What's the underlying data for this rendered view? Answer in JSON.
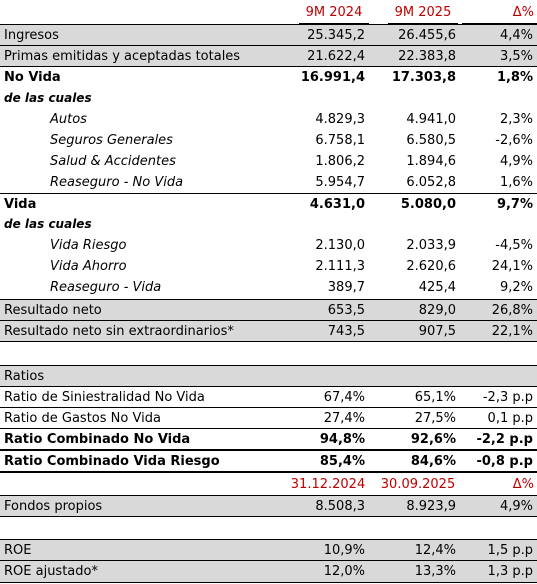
{
  "header": {
    "col1": "9M 2024",
    "col2": "9M 2025",
    "col3": "Δ%"
  },
  "rows": [
    {
      "label": "Ingresos",
      "v1": "25.345,2",
      "v2": "26.455,6",
      "d": "4,4%"
    },
    {
      "label": "Primas emitidas y aceptadas totales",
      "v1": "21.622,4",
      "v2": "22.383,8",
      "d": "3,5%"
    },
    {
      "label": "No Vida",
      "v1": "16.991,4",
      "v2": "17.303,8",
      "d": "1,8%"
    },
    {
      "label": "de las cuales"
    },
    {
      "label": "Autos",
      "v1": "4.829,3",
      "v2": "4.941,0",
      "d": "2,3%"
    },
    {
      "label": "Seguros Generales",
      "v1": "6.758,1",
      "v2": "6.580,5",
      "d": "-2,6%"
    },
    {
      "label": "Salud & Accidentes",
      "v1": "1.806,2",
      "v2": "1.894,6",
      "d": "4,9%"
    },
    {
      "label": "Reaseguro - No Vida",
      "v1": "5.954,7",
      "v2": "6.052,8",
      "d": "1,6%"
    },
    {
      "label": "Vida",
      "v1": "4.631,0",
      "v2": "5.080,0",
      "d": "9,7%"
    },
    {
      "label": "de las cuales"
    },
    {
      "label": "Vida Riesgo",
      "v1": "2.130,0",
      "v2": "2.033,9",
      "d": "-4,5%"
    },
    {
      "label": "Vida Ahorro",
      "v1": "2.111,3",
      "v2": "2.620,6",
      "d": "24,1%"
    },
    {
      "label": "Reaseguro - Vida",
      "v1": "389,7",
      "v2": "425,4",
      "d": "9,2%"
    },
    {
      "label": "Resultado neto",
      "v1": "653,5",
      "v2": "829,0",
      "d": "26,8%"
    },
    {
      "label": "Resultado neto sin extraordinarios*",
      "v1": "743,5",
      "v2": "907,5",
      "d": "22,1%"
    }
  ],
  "ratios": {
    "title": "Ratios",
    "rows": [
      {
        "label": "Ratio de Siniestralidad No Vida",
        "v1": "67,4%",
        "v2": "65,1%",
        "d": "-2,3 p.p"
      },
      {
        "label": "Ratio de Gastos No Vida",
        "v1": "27,4%",
        "v2": "27,5%",
        "d": "0,1 p.p"
      },
      {
        "label": "Ratio Combinado No Vida",
        "v1": "94,8%",
        "v2": "92,6%",
        "d": "-2,2 p.p"
      },
      {
        "label": "Ratio Combinado Vida Riesgo",
        "v1": "85,4%",
        "v2": "84,6%",
        "d": "-0,8 p.p"
      }
    ]
  },
  "header2": {
    "col1": "31.12.2024",
    "col2": "30.09.2025",
    "col3": "Δ%"
  },
  "fondos": {
    "label": "Fondos propios",
    "v1": "8.508,3",
    "v2": "8.923,9",
    "d": "4,9%"
  },
  "roe": [
    {
      "label": "ROE",
      "v1": "10,9%",
      "v2": "12,4%",
      "d": "1,5 p.p"
    },
    {
      "label": "ROE ajustado*",
      "v1": "12,0%",
      "v2": "13,3%",
      "d": "1,3 p.p"
    }
  ]
}
